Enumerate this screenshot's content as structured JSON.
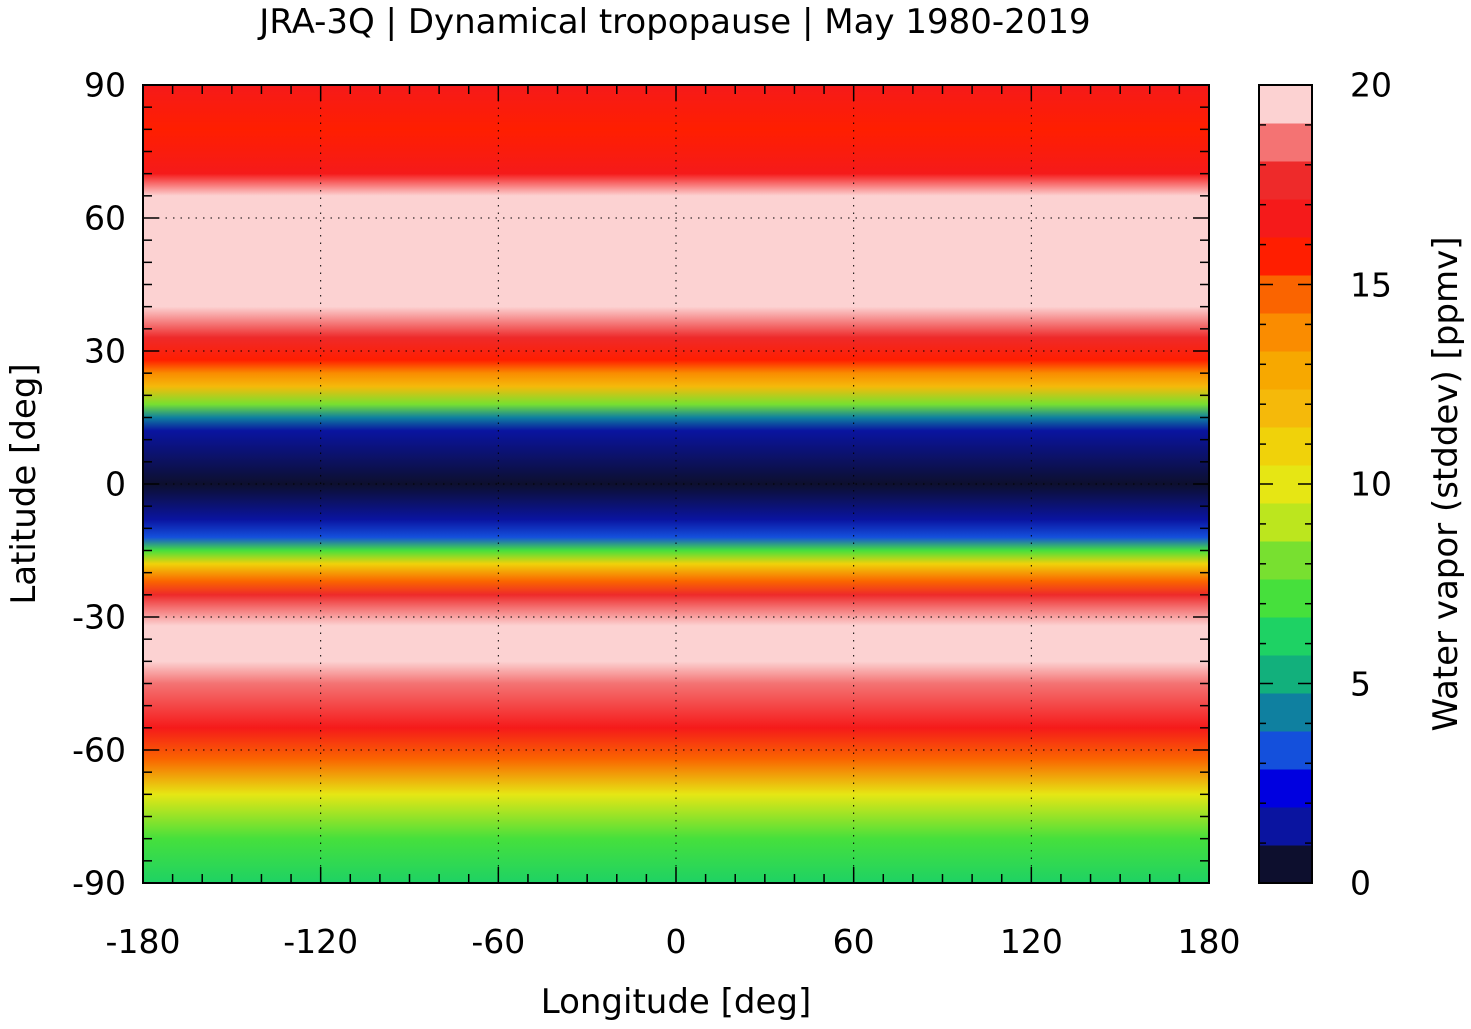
{
  "chart_data": {
    "type": "heatmap",
    "title": "JRA-3Q | Dynamical tropopause | May 1980-2019",
    "xlabel": "Longitude [deg]",
    "ylabel": "Latitude [deg]",
    "colorbar_label": "Water vapor (stddev) [ppmv]",
    "xlim": [
      -180,
      180
    ],
    "ylim": [
      -90,
      90
    ],
    "clim": [
      0,
      20
    ],
    "xticks": [
      "-180",
      "-120",
      "-60",
      "0",
      "60",
      "120",
      "180"
    ],
    "yticks": [
      "90",
      "60",
      "30",
      "0",
      "-30",
      "-60",
      "-90"
    ],
    "cticks": [
      "20",
      "15",
      "10",
      "5",
      "0"
    ],
    "grid": true,
    "colorbar_colors": [
      "#0d0f2e",
      "#0a14a0",
      "#0000e0",
      "#1450dc",
      "#0f80a0",
      "#12b07c",
      "#1ed264",
      "#46e03c",
      "#78e030",
      "#bce61e",
      "#e6e614",
      "#f0d20a",
      "#f5b90a",
      "#f7a800",
      "#fa8c00",
      "#fa6400",
      "#ff1e00",
      "#f51a1a",
      "#ee2a2a",
      "#f47373",
      "#fcd2d2"
    ],
    "zonal_profile_lat": [
      90,
      80,
      70,
      65,
      60,
      50,
      40,
      33,
      28,
      25,
      22,
      18,
      15,
      12,
      0,
      -8,
      -12,
      -15,
      -18,
      -22,
      -25,
      -28,
      -32,
      -40,
      -45,
      -55,
      -62,
      -70,
      -80,
      -90
    ],
    "zonal_profile_value": [
      16.5,
      15.8,
      17,
      19.5,
      20,
      20,
      20,
      18,
      16,
      14,
      12,
      8,
      4,
      1,
      0,
      1,
      3,
      7,
      11,
      15,
      17.5,
      18.5,
      20,
      20,
      18.5,
      17,
      15,
      10,
      6.5,
      5.5
    ]
  }
}
